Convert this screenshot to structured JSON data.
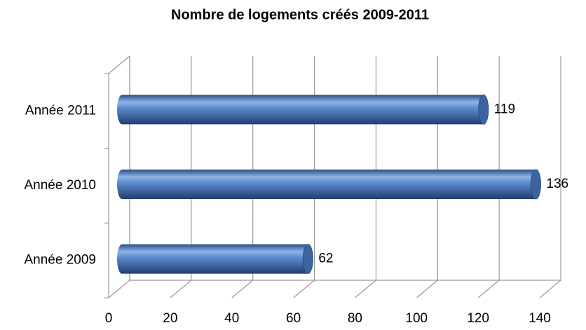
{
  "chart_data": {
    "type": "bar",
    "orientation": "horizontal",
    "title": "Nombre de logements créés 2009-2011",
    "categories": [
      "Année 2009",
      "Année 2010",
      "Année 2011"
    ],
    "values": [
      62,
      136,
      119
    ],
    "color": "#4f81bd",
    "xlim": [
      0,
      140
    ],
    "xticks": [
      0,
      20,
      40,
      60,
      80,
      100,
      120,
      140
    ],
    "grid": true
  }
}
